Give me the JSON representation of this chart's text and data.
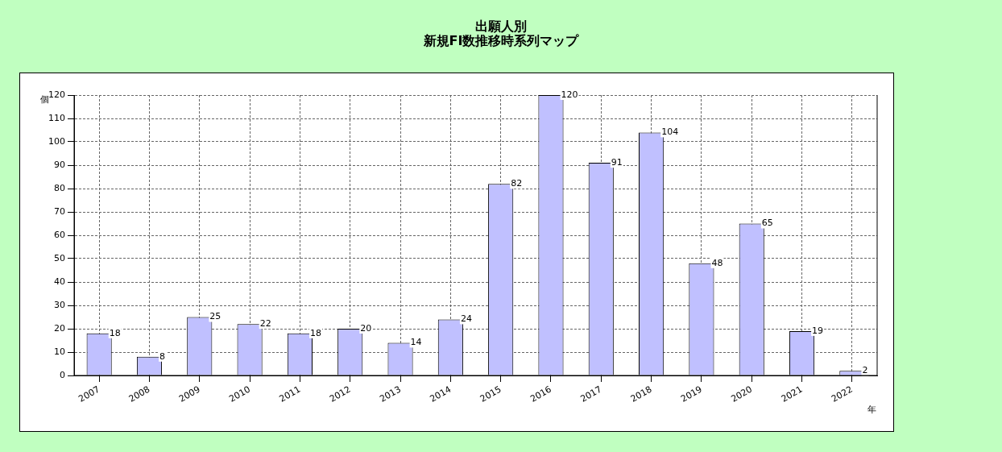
{
  "chart_data": {
    "type": "bar",
    "title": "出願人別",
    "subtitle": "新規FI数推移時系列マップ",
    "ylabel": "個",
    "xlabel": "年",
    "categories": [
      "2007",
      "2008",
      "2009",
      "2010",
      "2011",
      "2012",
      "2013",
      "2014",
      "2015",
      "2016",
      "2017",
      "2018",
      "2019",
      "2020",
      "2021",
      "2022"
    ],
    "series": [
      {
        "color": "#c0c0ff",
        "values": [
          18,
          8,
          25,
          22,
          18,
          20,
          14,
          24,
          82,
          120,
          91,
          104,
          48,
          65,
          19,
          2
        ]
      }
    ],
    "ylim": [
      0,
      120
    ],
    "yticks": [
      0,
      10,
      20,
      30,
      40,
      50,
      60,
      70,
      80,
      90,
      100,
      110,
      120
    ],
    "grid": true,
    "data_labels": true,
    "legend": false
  }
}
